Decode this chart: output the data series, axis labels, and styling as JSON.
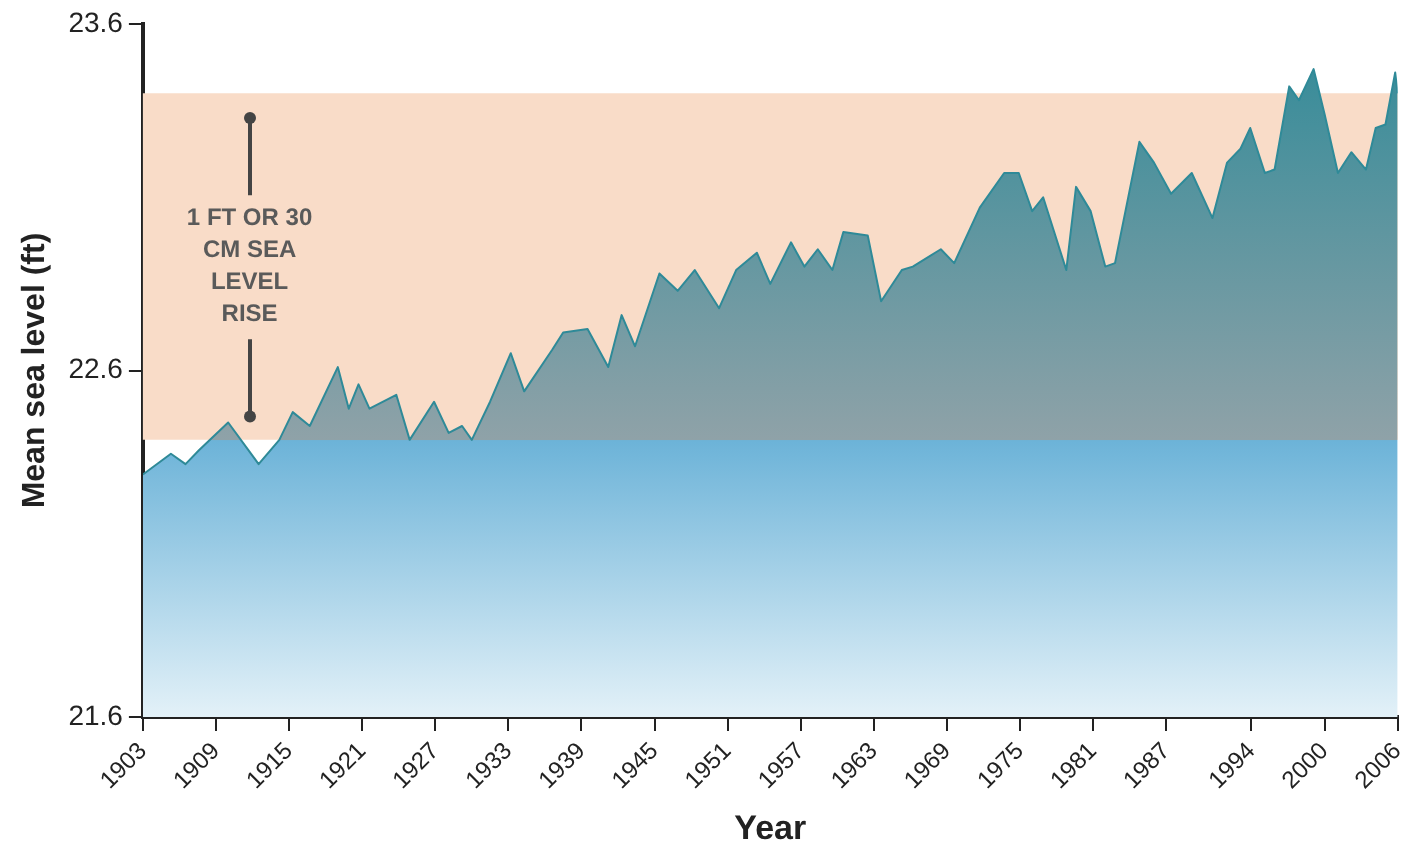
{
  "chart_data": {
    "type": "area",
    "xlabel": "Year",
    "ylabel": "Mean sea level (ft)",
    "xlim": [
      1903,
      2006
    ],
    "xticks": [
      1903,
      1909,
      1915,
      1921,
      1927,
      1933,
      1939,
      1945,
      1951,
      1957,
      1963,
      1969,
      1975,
      1981,
      1987,
      1994,
      2000,
      2006
    ],
    "ylim": [
      21.6,
      23.6
    ],
    "yticks": [
      21.6,
      22.6,
      23.6
    ],
    "grid": false,
    "legend": false,
    "bands": [
      {
        "axis": "y",
        "from": 22.4,
        "to": 23.4,
        "label": "1 FT OR 30 CM SEA LEVEL RISE",
        "color": "#f9dcc8"
      }
    ],
    "series": [
      {
        "color": "#2f8a98",
        "x": [
          1903,
          1905.3,
          1906.5,
          1907.6,
          1910,
          1912.5,
          1914.2,
          1915.3,
          1916.7,
          1919,
          1919.9,
          1920.7,
          1921.6,
          1923.8,
          1924.9,
          1926.9,
          1928.1,
          1929.2,
          1930,
          1931.5,
          1933.2,
          1934.3,
          1936.6,
          1937.5,
          1939.5,
          1941.2,
          1942.3,
          1943.4,
          1945.4,
          1946.9,
          1948.3,
          1950.3,
          1951.7,
          1953.4,
          1954.5,
          1956.2,
          1957.3,
          1958.4,
          1959.6,
          1960.5,
          1962.5,
          1963.6,
          1965.3,
          1966.2,
          1968.5,
          1969.6,
          1971.7,
          1973.7,
          1974.9,
          1976,
          1976.9,
          1978.8,
          1979.6,
          1980.8,
          1982,
          1982.8,
          1984.8,
          1986,
          1987.4,
          1989.1,
          1990.8,
          1992,
          1993.1,
          1993.9,
          1995.1,
          1995.9,
          1997.1,
          1997.9,
          1999.1,
          2000,
          2001.1,
          2002.2,
          2003.4,
          2004.2,
          2005,
          2005.8,
          2006
        ],
        "values": [
          22.3,
          22.36,
          22.33,
          22.37,
          22.45,
          22.33,
          22.4,
          22.48,
          22.44,
          22.61,
          22.49,
          22.56,
          22.49,
          22.53,
          22.4,
          22.51,
          22.42,
          22.44,
          22.4,
          22.51,
          22.65,
          22.54,
          22.66,
          22.71,
          22.72,
          22.61,
          22.76,
          22.67,
          22.88,
          22.83,
          22.89,
          22.78,
          22.89,
          22.94,
          22.85,
          22.97,
          22.9,
          22.95,
          22.89,
          23,
          22.99,
          22.8,
          22.89,
          22.9,
          22.95,
          22.91,
          23.07,
          23.17,
          23.17,
          23.06,
          23.1,
          22.89,
          23.13,
          23.06,
          22.9,
          22.91,
          23.26,
          23.2,
          23.11,
          23.17,
          23.04,
          23.2,
          23.24,
          23.3,
          23.17,
          23.18,
          23.42,
          23.38,
          23.47,
          23.34,
          23.17,
          23.23,
          23.18,
          23.3,
          23.31,
          23.46,
          23.4
        ]
      }
    ]
  }
}
